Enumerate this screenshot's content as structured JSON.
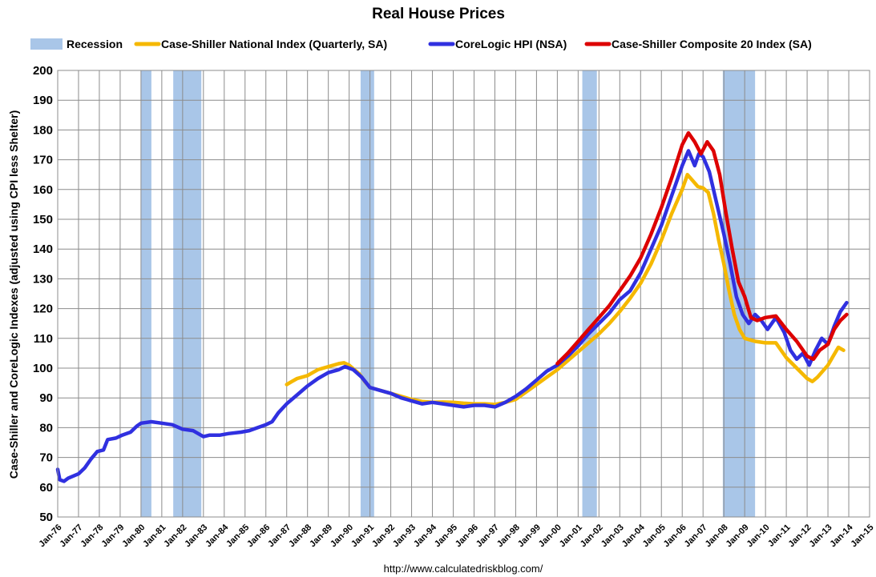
{
  "chart_data": {
    "type": "line",
    "title": "Real House Prices",
    "ylabel": "Case-Shiller and CoreLogic Indexes (adjusted using CPI less Shelter)",
    "source": "http://www.calculatedriskblog.com/",
    "ylim": [
      50,
      200
    ],
    "yticks": [
      50,
      60,
      70,
      80,
      90,
      100,
      110,
      120,
      130,
      140,
      150,
      160,
      170,
      180,
      190,
      200
    ],
    "xlim": [
      1976.0,
      2015.0
    ],
    "xticks": [
      {
        "label": "Jan-76",
        "x": 1976
      },
      {
        "label": "Jan-77",
        "x": 1977
      },
      {
        "label": "Jan-78",
        "x": 1978
      },
      {
        "label": "Jan-79",
        "x": 1979
      },
      {
        "label": "Jan-80",
        "x": 1980
      },
      {
        "label": "Jan-81",
        "x": 1981
      },
      {
        "label": "Jan-82",
        "x": 1982
      },
      {
        "label": "Jan-83",
        "x": 1983
      },
      {
        "label": "Jan-84",
        "x": 1984
      },
      {
        "label": "Jan-85",
        "x": 1985
      },
      {
        "label": "Jan-86",
        "x": 1986
      },
      {
        "label": "Jan-87",
        "x": 1987
      },
      {
        "label": "Jan-88",
        "x": 1988
      },
      {
        "label": "Jan-89",
        "x": 1989
      },
      {
        "label": "Jan-90",
        "x": 1990
      },
      {
        "label": "Jan-91",
        "x": 1991
      },
      {
        "label": "Jan-92",
        "x": 1992
      },
      {
        "label": "Jan-93",
        "x": 1993
      },
      {
        "label": "Jan-94",
        "x": 1994
      },
      {
        "label": "Jan-95",
        "x": 1995
      },
      {
        "label": "Jan-96",
        "x": 1996
      },
      {
        "label": "Jan-97",
        "x": 1997
      },
      {
        "label": "Jan-98",
        "x": 1998
      },
      {
        "label": "Jan-99",
        "x": 1999
      },
      {
        "label": "Jan-00",
        "x": 2000
      },
      {
        "label": "Jan-01",
        "x": 2001
      },
      {
        "label": "Jan-02",
        "x": 2002
      },
      {
        "label": "Jan-03",
        "x": 2003
      },
      {
        "label": "Jan-04",
        "x": 2004
      },
      {
        "label": "Jan-05",
        "x": 2005
      },
      {
        "label": "Jan-06",
        "x": 2006
      },
      {
        "label": "Jan-07",
        "x": 2007
      },
      {
        "label": "Jan-08",
        "x": 2008
      },
      {
        "label": "Jan-09",
        "x": 2009
      },
      {
        "label": "Jan-10",
        "x": 2010
      },
      {
        "label": "Jan-11",
        "x": 2011
      },
      {
        "label": "Jan-12",
        "x": 2012
      },
      {
        "label": "Jan-13",
        "x": 2013
      },
      {
        "label": "Jan-14",
        "x": 2014
      },
      {
        "label": "Jan-15",
        "x": 2015
      }
    ],
    "grid": true,
    "legend_position": "top",
    "recession": {
      "name": "Recession",
      "color": "#a9c6e8",
      "periods": [
        [
          1980.0,
          1980.5
        ],
        [
          1981.55,
          1982.9
        ],
        [
          1990.55,
          1991.2
        ],
        [
          2001.2,
          2001.9
        ],
        [
          2007.95,
          2009.5
        ]
      ]
    },
    "series": [
      {
        "name": "Case-Shiller National Index (Quarterly, SA)",
        "color": "#f5b800",
        "points": [
          [
            1987.0,
            94.5
          ],
          [
            1987.25,
            95.5
          ],
          [
            1987.5,
            96.5
          ],
          [
            1987.75,
            97.0
          ],
          [
            1988.0,
            97.5
          ],
          [
            1988.25,
            98.5
          ],
          [
            1988.5,
            99.5
          ],
          [
            1988.75,
            100.0
          ],
          [
            1989.0,
            100.5
          ],
          [
            1989.25,
            101.0
          ],
          [
            1989.5,
            101.5
          ],
          [
            1989.75,
            101.8
          ],
          [
            1990.0,
            101.0
          ],
          [
            1990.25,
            99.5
          ],
          [
            1990.5,
            98.0
          ],
          [
            1990.75,
            95.5
          ],
          [
            1991.0,
            93.5
          ],
          [
            1991.25,
            93.0
          ],
          [
            1991.5,
            92.5
          ],
          [
            1991.75,
            92.0
          ],
          [
            1992.0,
            91.5
          ],
          [
            1992.5,
            90.5
          ],
          [
            1993.0,
            89.5
          ],
          [
            1993.5,
            88.8
          ],
          [
            1994.0,
            88.5
          ],
          [
            1994.5,
            88.6
          ],
          [
            1995.0,
            88.5
          ],
          [
            1995.5,
            88.2
          ],
          [
            1996.0,
            88.0
          ],
          [
            1996.5,
            88.0
          ],
          [
            1997.0,
            87.8
          ],
          [
            1997.5,
            88.5
          ],
          [
            1998.0,
            89.5
          ],
          [
            1998.5,
            92.0
          ],
          [
            1999.0,
            94.5
          ],
          [
            1999.5,
            97.0
          ],
          [
            2000.0,
            99.5
          ],
          [
            2000.5,
            102.5
          ],
          [
            2001.0,
            105.5
          ],
          [
            2001.5,
            108.5
          ],
          [
            2002.0,
            111.5
          ],
          [
            2002.5,
            115.0
          ],
          [
            2003.0,
            119.0
          ],
          [
            2003.5,
            123.5
          ],
          [
            2004.0,
            128.5
          ],
          [
            2004.5,
            135.0
          ],
          [
            2005.0,
            143.0
          ],
          [
            2005.5,
            152.0
          ],
          [
            2006.0,
            160.0
          ],
          [
            2006.25,
            165.0
          ],
          [
            2006.5,
            163.0
          ],
          [
            2006.75,
            161.0
          ],
          [
            2007.0,
            160.5
          ],
          [
            2007.25,
            159.0
          ],
          [
            2007.5,
            152.0
          ],
          [
            2007.75,
            143.0
          ],
          [
            2008.0,
            135.0
          ],
          [
            2008.25,
            126.0
          ],
          [
            2008.5,
            118.0
          ],
          [
            2008.75,
            113.0
          ],
          [
            2009.0,
            110.0
          ],
          [
            2009.5,
            109.0
          ],
          [
            2010.0,
            108.5
          ],
          [
            2010.5,
            108.5
          ],
          [
            2011.0,
            103.5
          ],
          [
            2011.5,
            100.0
          ],
          [
            2012.0,
            96.5
          ],
          [
            2012.25,
            95.5
          ],
          [
            2012.5,
            97.0
          ],
          [
            2012.75,
            99.0
          ],
          [
            2013.0,
            101.0
          ],
          [
            2013.25,
            104.0
          ],
          [
            2013.5,
            107.0
          ],
          [
            2013.75,
            106.0
          ]
        ]
      },
      {
        "name": "CoreLogic HPI (NSA)",
        "color": "#3030e0",
        "points": [
          [
            1976.0,
            66.0
          ],
          [
            1976.1,
            62.5
          ],
          [
            1976.3,
            62.0
          ],
          [
            1976.5,
            63.0
          ],
          [
            1977.0,
            64.5
          ],
          [
            1977.3,
            66.5
          ],
          [
            1977.6,
            69.5
          ],
          [
            1977.9,
            72.0
          ],
          [
            1978.2,
            72.5
          ],
          [
            1978.4,
            76.0
          ],
          [
            1978.8,
            76.5
          ],
          [
            1979.1,
            77.5
          ],
          [
            1979.5,
            78.5
          ],
          [
            1979.8,
            80.5
          ],
          [
            1980.0,
            81.5
          ],
          [
            1980.5,
            82.0
          ],
          [
            1981.0,
            81.5
          ],
          [
            1981.5,
            81.0
          ],
          [
            1982.0,
            79.5
          ],
          [
            1982.5,
            79.0
          ],
          [
            1983.0,
            77.0
          ],
          [
            1983.3,
            77.5
          ],
          [
            1983.8,
            77.5
          ],
          [
            1984.2,
            78.0
          ],
          [
            1984.8,
            78.5
          ],
          [
            1985.2,
            79.0
          ],
          [
            1985.6,
            80.0
          ],
          [
            1986.0,
            81.0
          ],
          [
            1986.3,
            82.0
          ],
          [
            1986.6,
            85.0
          ],
          [
            1987.0,
            88.0
          ],
          [
            1987.5,
            91.0
          ],
          [
            1988.0,
            94.0
          ],
          [
            1988.5,
            96.5
          ],
          [
            1989.0,
            98.5
          ],
          [
            1989.5,
            99.5
          ],
          [
            1989.8,
            100.5
          ],
          [
            1990.2,
            99.5
          ],
          [
            1990.6,
            97.0
          ],
          [
            1991.0,
            93.5
          ],
          [
            1991.5,
            92.5
          ],
          [
            1992.0,
            91.5
          ],
          [
            1992.5,
            90.0
          ],
          [
            1993.0,
            89.0
          ],
          [
            1993.5,
            88.0
          ],
          [
            1994.0,
            88.5
          ],
          [
            1994.5,
            88.0
          ],
          [
            1995.0,
            87.5
          ],
          [
            1995.5,
            87.0
          ],
          [
            1996.0,
            87.5
          ],
          [
            1996.5,
            87.5
          ],
          [
            1997.0,
            87.0
          ],
          [
            1997.5,
            88.5
          ],
          [
            1998.0,
            90.5
          ],
          [
            1998.5,
            93.0
          ],
          [
            1999.0,
            96.0
          ],
          [
            1999.5,
            99.0
          ],
          [
            2000.0,
            101.0
          ],
          [
            2000.5,
            104.0
          ],
          [
            2001.0,
            107.5
          ],
          [
            2001.5,
            111.5
          ],
          [
            2002.0,
            115.0
          ],
          [
            2002.5,
            118.5
          ],
          [
            2003.0,
            123.0
          ],
          [
            2003.5,
            126.0
          ],
          [
            2004.0,
            132.0
          ],
          [
            2004.5,
            140.0
          ],
          [
            2005.0,
            148.0
          ],
          [
            2005.5,
            158.0
          ],
          [
            2006.0,
            168.0
          ],
          [
            2006.3,
            173.0
          ],
          [
            2006.6,
            168.0
          ],
          [
            2006.8,
            172.0
          ],
          [
            2007.0,
            171.0
          ],
          [
            2007.3,
            166.0
          ],
          [
            2007.6,
            157.0
          ],
          [
            2008.0,
            145.0
          ],
          [
            2008.3,
            135.0
          ],
          [
            2008.6,
            124.0
          ],
          [
            2008.9,
            118.0
          ],
          [
            2009.2,
            115.0
          ],
          [
            2009.5,
            118.0
          ],
          [
            2009.8,
            116.0
          ],
          [
            2010.1,
            113.0
          ],
          [
            2010.5,
            117.0
          ],
          [
            2010.9,
            112.0
          ],
          [
            2011.2,
            106.0
          ],
          [
            2011.5,
            103.0
          ],
          [
            2011.8,
            105.0
          ],
          [
            2012.1,
            101.0
          ],
          [
            2012.4,
            106.0
          ],
          [
            2012.7,
            110.0
          ],
          [
            2013.0,
            108.0
          ],
          [
            2013.3,
            114.0
          ],
          [
            2013.6,
            119.0
          ],
          [
            2013.9,
            122.0
          ]
        ]
      },
      {
        "name": "Case-Shiller Composite 20 Index (SA)",
        "color": "#dd0000",
        "points": [
          [
            2000.0,
            101.5
          ],
          [
            2000.5,
            105.0
          ],
          [
            2001.0,
            109.0
          ],
          [
            2001.5,
            113.0
          ],
          [
            2002.0,
            117.0
          ],
          [
            2002.5,
            121.0
          ],
          [
            2003.0,
            126.0
          ],
          [
            2003.5,
            131.0
          ],
          [
            2004.0,
            137.0
          ],
          [
            2004.5,
            145.0
          ],
          [
            2005.0,
            154.0
          ],
          [
            2005.5,
            164.0
          ],
          [
            2006.0,
            175.0
          ],
          [
            2006.3,
            179.0
          ],
          [
            2006.6,
            176.0
          ],
          [
            2006.9,
            172.0
          ],
          [
            2007.2,
            176.0
          ],
          [
            2007.5,
            173.0
          ],
          [
            2007.8,
            165.0
          ],
          [
            2008.1,
            152.0
          ],
          [
            2008.4,
            140.0
          ],
          [
            2008.7,
            129.0
          ],
          [
            2009.0,
            124.0
          ],
          [
            2009.3,
            117.0
          ],
          [
            2009.6,
            116.0
          ],
          [
            2010.0,
            117.0
          ],
          [
            2010.5,
            117.5
          ],
          [
            2011.0,
            113.0
          ],
          [
            2011.5,
            109.0
          ],
          [
            2012.0,
            104.0
          ],
          [
            2012.3,
            103.0
          ],
          [
            2012.6,
            106.0
          ],
          [
            2013.0,
            108.0
          ],
          [
            2013.3,
            113.0
          ],
          [
            2013.6,
            116.0
          ],
          [
            2013.9,
            118.0
          ]
        ]
      }
    ]
  }
}
